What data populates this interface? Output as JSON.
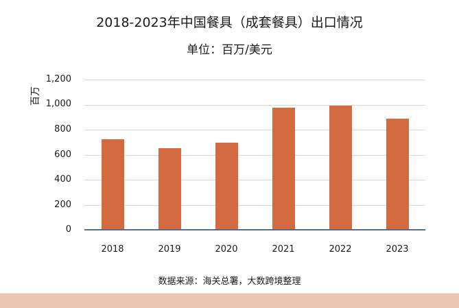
{
  "title": "2018-2023年中国餐具（成套餐具）出口情况",
  "subtitle": "单位：百万/美元",
  "source": "数据来源：海关总署，大数跨境整理",
  "colors": {
    "bar": "#d46b40",
    "grid": "#d9d9d9",
    "axis": "#5a6b85",
    "footer_band": "#ebc5b3"
  },
  "chart_data": {
    "type": "bar",
    "title": "2018-2023年中国餐具（成套餐具）出口情况",
    "subtitle": "单位：百万/美元",
    "xlabel": "",
    "ylabel": "百万",
    "categories": [
      "2018",
      "2019",
      "2020",
      "2021",
      "2022",
      "2023"
    ],
    "values": [
      725,
      650,
      695,
      975,
      990,
      890
    ],
    "ylim": [
      0,
      1200
    ],
    "yticks": [
      "0",
      "200",
      "400",
      "600",
      "800",
      "1,000",
      "1,200"
    ],
    "grid": true,
    "legend": null,
    "source": "数据来源：海关总署，大数跨境整理"
  }
}
